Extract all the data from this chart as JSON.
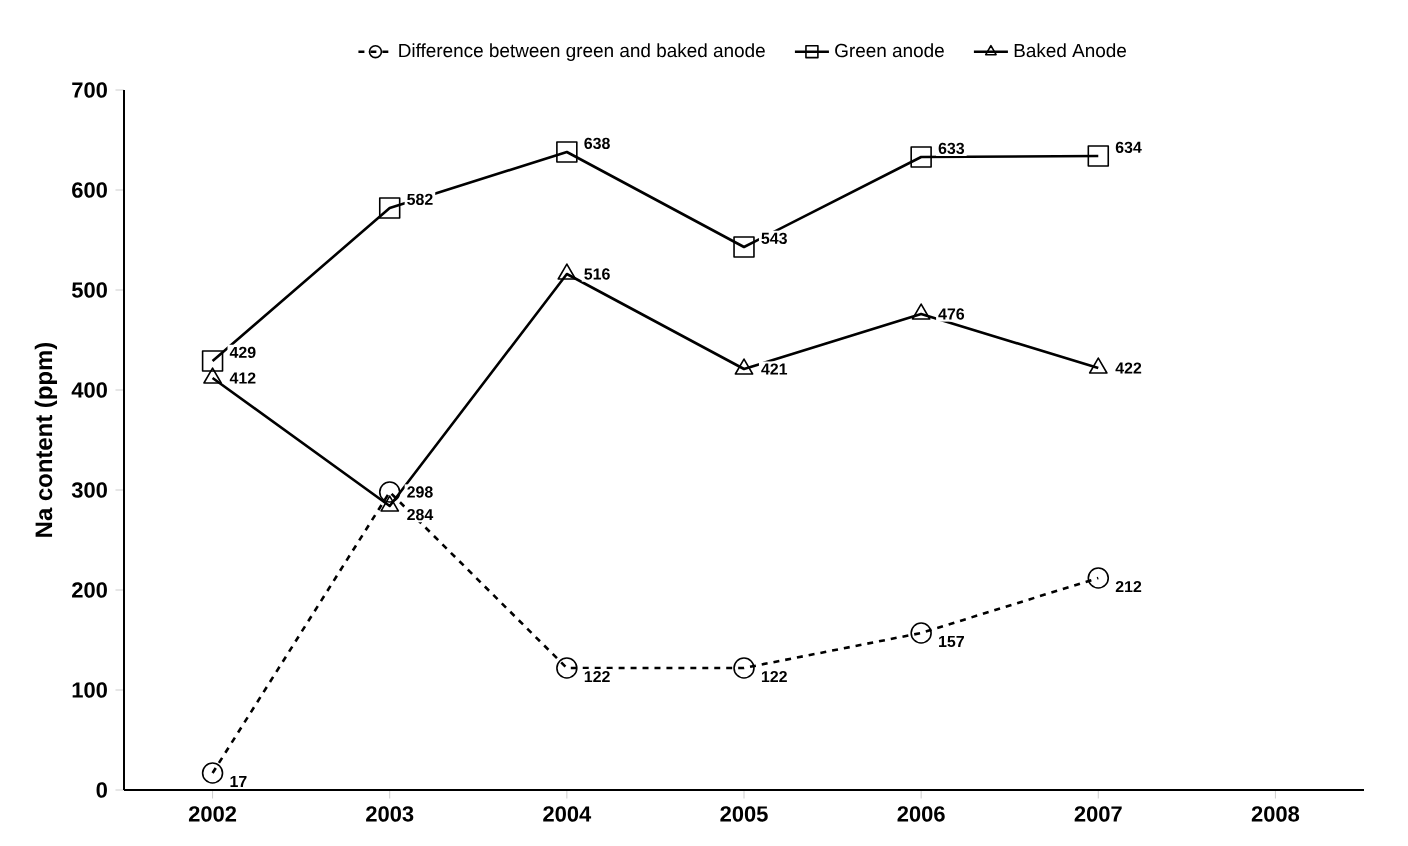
{
  "chart_data": {
    "type": "line",
    "ylabel": "Na content (ppm)",
    "categories": [
      "2002",
      "2003",
      "2004",
      "2005",
      "2006",
      "2007",
      "2008"
    ],
    "series": [
      {
        "name": "Difference between green and baked anode",
        "color": "#000000",
        "marker": "circle",
        "line_style": "dashed",
        "values": [
          17,
          298,
          122,
          122,
          157,
          212,
          null
        ]
      },
      {
        "name": "Green anode",
        "color": "#000000",
        "marker": "square",
        "line_style": "solid",
        "values": [
          429,
          582,
          638,
          543,
          633,
          634,
          null
        ]
      },
      {
        "name": "Baked Anode",
        "color": "#000000",
        "marker": "triangle",
        "line_style": "solid",
        "values": [
          412,
          284,
          516,
          421,
          476,
          422,
          null
        ]
      }
    ],
    "ylim": [
      0,
      700
    ],
    "yticks": [
      0,
      100,
      200,
      300,
      400,
      500,
      600,
      700
    ],
    "grid": false,
    "legend": "top",
    "data_labels": true
  }
}
